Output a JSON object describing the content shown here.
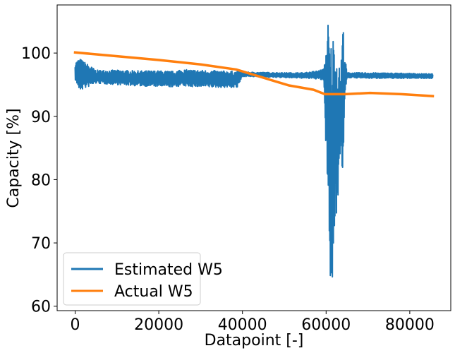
{
  "chart_data": {
    "type": "line",
    "xlabel": "Datapoint [-]",
    "ylabel": "Capacity [%]",
    "xlim": [
      -4300,
      89800
    ],
    "ylim": [
      59.3,
      107.6
    ],
    "xticks": [
      0,
      20000,
      40000,
      60000,
      80000
    ],
    "xtick_labels": [
      "0",
      "20000",
      "40000",
      "60000",
      "80000"
    ],
    "yticks": [
      60,
      70,
      80,
      90,
      100
    ],
    "ytick_labels": [
      "60",
      "70",
      "80",
      "90",
      "100"
    ],
    "legend_position": "lower-left",
    "grid": false,
    "series": [
      {
        "name": "Estimated W5",
        "color": "#1f77b4",
        "noisy": true,
        "envelope_x": [
          0,
          1000,
          5000,
          10000,
          15000,
          20000,
          24000,
          25000,
          30000,
          38800,
          40000,
          50000,
          55000,
          58000,
          59500,
          60000,
          60500,
          61000,
          61500,
          62000,
          62500,
          63000,
          63500,
          64000,
          64500,
          65000,
          70000,
          80000,
          85500
        ],
        "envelope_hi": [
          98.5,
          99.2,
          97.3,
          97.3,
          97.2,
          97.2,
          97.1,
          97.4,
          97.3,
          97.1,
          97.0,
          96.9,
          96.9,
          97.2,
          97.5,
          101.5,
          105.3,
          101.0,
          103.5,
          102.5,
          100.5,
          98.0,
          97.5,
          105.3,
          99.5,
          96.9,
          96.9,
          96.8,
          96.7
        ],
        "envelope_lo": [
          95.8,
          94.0,
          95.2,
          95.0,
          94.8,
          94.7,
          94.6,
          94.8,
          94.6,
          94.5,
          96.3,
          96.1,
          96.0,
          95.9,
          95.6,
          82.8,
          78.8,
          61.6,
          63.0,
          71.3,
          74.8,
          78.5,
          86.0,
          79.2,
          93.5,
          96.1,
          96.0,
          96.0,
          96.0
        ]
      },
      {
        "name": "Actual W5",
        "color": "#ff7f0e",
        "x": [
          0,
          10000,
          20000,
          30000,
          38500,
          45000,
          51000,
          57000,
          59700,
          64500,
          70500,
          78000,
          85500
        ],
        "y": [
          100.1,
          99.5,
          98.9,
          98.2,
          97.4,
          96.1,
          94.9,
          94.2,
          93.5,
          93.5,
          93.7,
          93.5,
          93.2
        ]
      }
    ]
  }
}
